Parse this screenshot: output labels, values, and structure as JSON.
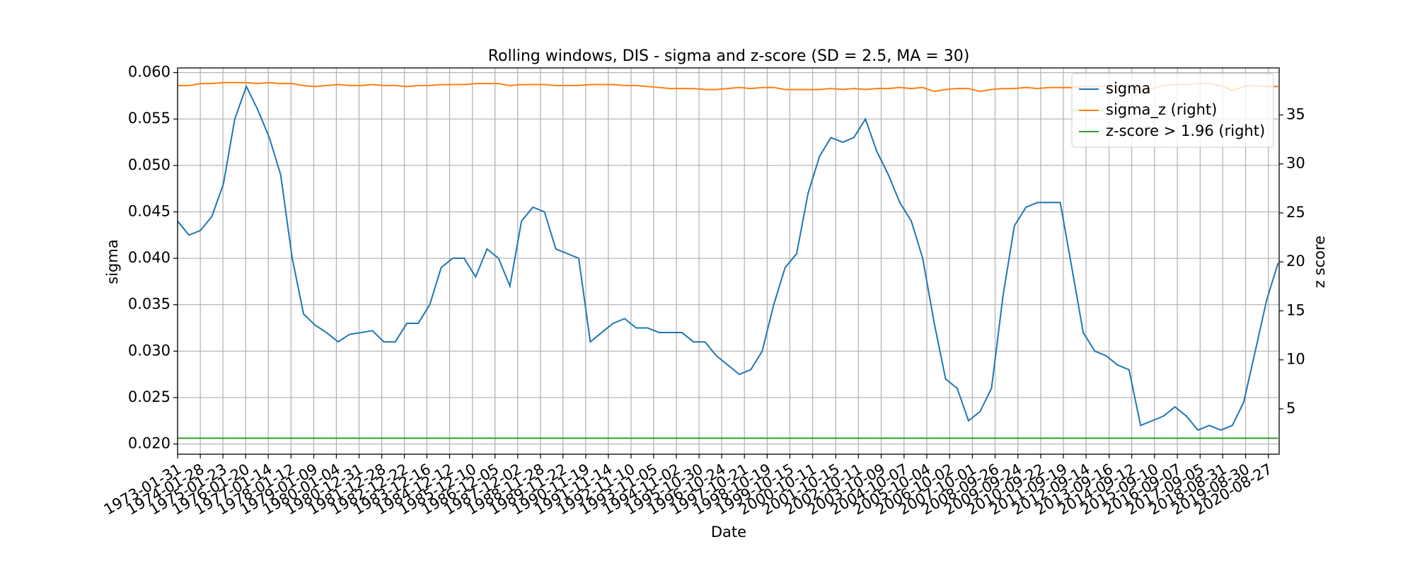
{
  "chart_data": {
    "type": "line",
    "title": "Rolling windows, DIS - sigma and z-score (SD = 2.5, MA = 30)",
    "x_label": "Date",
    "y_label": "sigma",
    "y2_label": "z score",
    "x": [
      "1973-01-31",
      "1973-07-31",
      "1974-01-31",
      "1974-07-31",
      "1975-01-31",
      "1975-07-31",
      "1976-01-31",
      "1976-07-31",
      "1977-01-31",
      "1977-07-31",
      "1978-01-31",
      "1978-07-31",
      "1979-01-31",
      "1979-07-31",
      "1980-01-31",
      "1980-07-31",
      "1981-01-31",
      "1981-07-31",
      "1982-01-31",
      "1982-07-31",
      "1983-01-31",
      "1983-07-31",
      "1984-01-31",
      "1984-07-31",
      "1985-01-31",
      "1985-07-31",
      "1986-01-31",
      "1986-07-31",
      "1987-01-31",
      "1987-07-31",
      "1988-01-31",
      "1988-07-31",
      "1989-01-31",
      "1989-07-31",
      "1990-01-31",
      "1990-07-31",
      "1991-01-31",
      "1991-07-31",
      "1992-01-31",
      "1992-07-31",
      "1993-01-31",
      "1993-07-31",
      "1994-01-31",
      "1994-07-31",
      "1995-01-31",
      "1995-07-31",
      "1996-01-31",
      "1996-07-31",
      "1997-01-31",
      "1997-07-31",
      "1998-01-31",
      "1998-07-31",
      "1999-01-31",
      "1999-07-31",
      "2000-01-31",
      "2000-07-31",
      "2001-01-31",
      "2001-07-31",
      "2002-01-31",
      "2002-07-31",
      "2003-01-31",
      "2003-07-31",
      "2004-01-31",
      "2004-07-31",
      "2005-01-31",
      "2005-07-31",
      "2006-01-31",
      "2006-07-31",
      "2007-01-31",
      "2007-07-31",
      "2008-01-31",
      "2008-07-31",
      "2009-01-31",
      "2009-07-31",
      "2010-01-31",
      "2010-07-31",
      "2011-01-31",
      "2011-07-31",
      "2012-01-31",
      "2012-07-31",
      "2013-01-31",
      "2013-07-31",
      "2014-01-31",
      "2014-07-31",
      "2015-01-31",
      "2015-07-31",
      "2016-01-31",
      "2016-07-31",
      "2017-01-31",
      "2017-07-31",
      "2018-01-31",
      "2018-07-31",
      "2019-01-31",
      "2019-07-31",
      "2020-01-31",
      "2020-07-31",
      "2021-01-29"
    ],
    "series": [
      {
        "name": "sigma",
        "color": "#1f77b4",
        "axis": "y",
        "values": [
          0.044,
          0.0425,
          0.043,
          0.0445,
          0.048,
          0.055,
          0.0585,
          0.056,
          0.053,
          0.049,
          0.04,
          0.034,
          0.0328,
          0.032,
          0.031,
          0.0318,
          0.032,
          0.0322,
          0.031,
          0.031,
          0.033,
          0.033,
          0.035,
          0.039,
          0.04,
          0.04,
          0.038,
          0.041,
          0.04,
          0.037,
          0.044,
          0.0455,
          0.045,
          0.041,
          0.0405,
          0.04,
          0.031,
          0.032,
          0.033,
          0.0335,
          0.0325,
          0.0325,
          0.032,
          0.032,
          0.032,
          0.031,
          0.031,
          0.0295,
          0.0285,
          0.0275,
          0.028,
          0.03,
          0.035,
          0.039,
          0.0405,
          0.047,
          0.051,
          0.053,
          0.0525,
          0.053,
          0.055,
          0.0515,
          0.049,
          0.046,
          0.044,
          0.04,
          0.033,
          0.027,
          0.026,
          0.0225,
          0.0235,
          0.026,
          0.036,
          0.0435,
          0.0455,
          0.046,
          0.046,
          0.046,
          0.039,
          0.032,
          0.03,
          0.0295,
          0.0285,
          0.028,
          0.022,
          0.0225,
          0.023,
          0.024,
          0.023,
          0.0215,
          0.022,
          0.0215,
          0.022,
          0.0245,
          0.03,
          0.0355,
          0.0395
        ]
      },
      {
        "name": "sigma_z (right)",
        "color": "#ff7f0e",
        "axis": "y2",
        "values": [
          38.0,
          38.0,
          38.2,
          38.2,
          38.3,
          38.3,
          38.3,
          38.2,
          38.3,
          38.2,
          38.2,
          38.0,
          37.9,
          38.0,
          38.1,
          38.0,
          38.0,
          38.1,
          38.0,
          38.0,
          37.9,
          38.0,
          38.0,
          38.1,
          38.1,
          38.1,
          38.2,
          38.2,
          38.2,
          38.0,
          38.1,
          38.1,
          38.1,
          38.0,
          38.0,
          38.0,
          38.1,
          38.1,
          38.1,
          38.0,
          38.0,
          37.9,
          37.8,
          37.7,
          37.7,
          37.7,
          37.6,
          37.6,
          37.7,
          37.8,
          37.7,
          37.8,
          37.8,
          37.6,
          37.6,
          37.6,
          37.6,
          37.7,
          37.6,
          37.7,
          37.6,
          37.7,
          37.7,
          37.8,
          37.7,
          37.8,
          37.4,
          37.6,
          37.7,
          37.7,
          37.4,
          37.6,
          37.7,
          37.7,
          37.8,
          37.7,
          37.8,
          37.8,
          37.8,
          37.9,
          37.9,
          38.0,
          38.0,
          37.9,
          37.4,
          37.7,
          38.0,
          38.1,
          38.1,
          38.2,
          38.2,
          38.0,
          37.5,
          37.9,
          38.0,
          37.9,
          37.9
        ]
      },
      {
        "name": "z-score > 1.96 (right)",
        "color": "#2ca02c",
        "axis": "y2",
        "values": [
          2,
          2,
          2,
          2,
          2,
          2,
          2,
          2,
          2,
          2,
          2,
          2,
          2,
          2,
          2,
          2,
          2,
          2,
          2,
          2,
          2,
          2,
          2,
          2,
          2,
          2,
          2,
          2,
          2,
          2,
          2,
          2,
          2,
          2,
          2,
          2,
          2,
          2,
          2,
          2,
          2,
          2,
          2,
          2,
          2,
          2,
          2,
          2,
          2,
          2,
          2,
          2,
          2,
          2,
          2,
          2,
          2,
          2,
          2,
          2,
          2,
          2,
          2,
          2,
          2,
          2,
          2,
          2,
          2,
          2,
          2,
          2,
          2,
          2,
          2,
          2,
          2,
          2,
          2,
          2,
          2,
          2,
          2,
          2,
          2,
          2,
          2,
          2,
          2,
          2,
          2,
          2,
          2,
          2,
          2,
          2,
          2
        ]
      }
    ],
    "xlim": [
      "1973-01-31",
      "2021-02-15"
    ],
    "xticks": [
      "1973-01-31",
      "1974-01-28",
      "1975-01-23",
      "1976-01-20",
      "1977-01-14",
      "1978-01-12",
      "1979-01-09",
      "1980-01-04",
      "1980-12-31",
      "1981-12-28",
      "1982-12-22",
      "1983-12-16",
      "1984-12-12",
      "1985-12-10",
      "1986-12-05",
      "1987-12-02",
      "1988-11-28",
      "1989-11-22",
      "1990-11-19",
      "1991-11-14",
      "1992-11-10",
      "1993-11-05",
      "1994-11-02",
      "1995-10-30",
      "1996-10-24",
      "1997-10-21",
      "1998-10-19",
      "1999-10-15",
      "2000-10-11",
      "2001-10-15",
      "2002-10-11",
      "2003-10-09",
      "2004-10-07",
      "2005-10-04",
      "2006-10-02",
      "2007-10-01",
      "2008-09-26",
      "2009-09-24",
      "2010-09-22",
      "2011-09-19",
      "2012-09-14",
      "2013-09-16",
      "2014-09-12",
      "2015-09-10",
      "2016-09-07",
      "2017-09-05",
      "2018-08-31",
      "2019-08-30",
      "2020-08-27"
    ],
    "ylim": [
      0.0189,
      0.0605
    ],
    "yticks": [
      {
        "value": 0.02,
        "label": "0.020"
      },
      {
        "value": 0.025,
        "label": "0.025"
      },
      {
        "value": 0.03,
        "label": "0.030"
      },
      {
        "value": 0.035,
        "label": "0.035"
      },
      {
        "value": 0.04,
        "label": "0.040"
      },
      {
        "value": 0.045,
        "label": "0.045"
      },
      {
        "value": 0.05,
        "label": "0.050"
      },
      {
        "value": 0.055,
        "label": "0.055"
      },
      {
        "value": 0.06,
        "label": "0.060"
      }
    ],
    "y2lim": [
      0.37,
      39.8
    ],
    "y2ticks": [
      5,
      10,
      15,
      20,
      25,
      30,
      35
    ],
    "grid": true,
    "legend": "upper right"
  }
}
